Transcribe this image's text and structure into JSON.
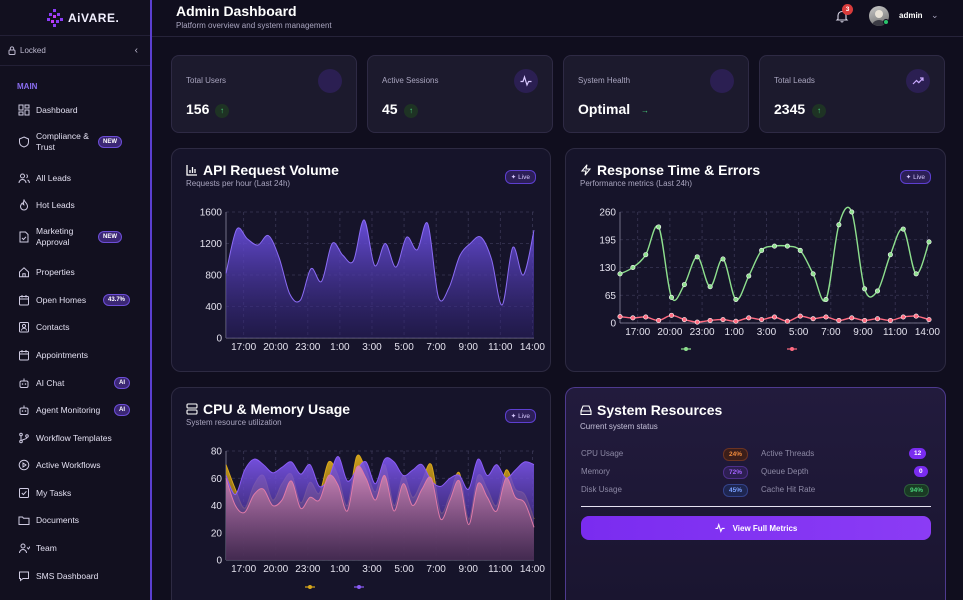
{
  "brand": {
    "name": "AiVARE."
  },
  "sidebar": {
    "lock_label": "Locked",
    "section": "MAIN",
    "items": [
      {
        "label": "Dashboard",
        "icon": "dashboard-icon"
      },
      {
        "label": "Compliance & Trust",
        "icon": "shield-icon",
        "badge": "NEW"
      },
      {
        "label": "All Leads",
        "icon": "users-icon"
      },
      {
        "label": "Hot Leads",
        "icon": "flame-icon"
      },
      {
        "label": "Marketing Approval",
        "icon": "document-check-icon",
        "badge": "NEW"
      },
      {
        "label": "Properties",
        "icon": "home-icon"
      },
      {
        "label": "Open Homes",
        "icon": "calendar-icon",
        "badge": "43.7%"
      },
      {
        "label": "Contacts",
        "icon": "contact-card-icon"
      },
      {
        "label": "Appointments",
        "icon": "calendar-icon"
      },
      {
        "label": "AI Chat",
        "icon": "bot-icon",
        "badge": "AI"
      },
      {
        "label": "Agent Monitoring",
        "icon": "bot-icon",
        "badge": "AI"
      },
      {
        "label": "Workflow Templates",
        "icon": "git-branch-icon"
      },
      {
        "label": "Active Workflows",
        "icon": "play-circle-icon"
      },
      {
        "label": "My Tasks",
        "icon": "checkbox-icon"
      },
      {
        "label": "Documents",
        "icon": "folder-icon"
      },
      {
        "label": "Team",
        "icon": "team-icon"
      },
      {
        "label": "SMS Dashboard",
        "icon": "message-icon"
      }
    ]
  },
  "header": {
    "title": "Admin Dashboard",
    "subtitle": "Platform overview and system management",
    "notifications": "3",
    "user": "admin"
  },
  "stats": [
    {
      "label": "Total Users",
      "value": "156",
      "trend": "↑"
    },
    {
      "label": "Active Sessions",
      "value": "45",
      "trend": "↑"
    },
    {
      "label": "System Health",
      "value": "Optimal",
      "trend": "→"
    },
    {
      "label": "Total Leads",
      "value": "2345",
      "trend": "↑"
    }
  ],
  "panels": {
    "api": {
      "title": "API Request Volume",
      "subtitle": "Requests per hour (Last 24h)",
      "badge": "Live"
    },
    "response": {
      "title": "Response Time & Errors",
      "subtitle": "Performance metrics (Last 24h)",
      "badge": "Live"
    },
    "cpu": {
      "title": "CPU & Memory Usage",
      "subtitle": "System resource utilization",
      "badge": "Live"
    }
  },
  "system_resources": {
    "title": "System Resources",
    "subtitle": "Current system status",
    "left": [
      {
        "label": "CPU Usage",
        "value": "24%",
        "color": "#f08a3c"
      },
      {
        "label": "Memory",
        "value": "72%",
        "color": "#a463ff"
      },
      {
        "label": "Disk Usage",
        "value": "45%",
        "color": "#5b8cff"
      }
    ],
    "right": [
      {
        "label": "Active Threads",
        "value": "12",
        "color": "#8b3cf5"
      },
      {
        "label": "Queue Depth",
        "value": "0",
        "color": "#8b3cf5"
      },
      {
        "label": "Cache Hit Rate",
        "value": "94%",
        "color": "#3ecf6e"
      }
    ],
    "button": "View Full Metrics"
  },
  "chart_data": [
    {
      "type": "area",
      "title": "API Request Volume",
      "x_ticks": [
        "17:00",
        "20:00",
        "23:00",
        "1:00",
        "3:00",
        "5:00",
        "7:00",
        "9:00",
        "11:00",
        "14:00"
      ],
      "ylim": [
        0,
        1600
      ],
      "y_ticks": [
        "0",
        "400",
        "800",
        "1200",
        "1600"
      ],
      "grid": true,
      "series": [
        {
          "values": [
            820,
            1380,
            1260,
            1180,
            1300,
            1020,
            560,
            480,
            880,
            720,
            1200,
            1050,
            980,
            1500,
            920,
            1200,
            900,
            1280,
            1120,
            1450,
            520,
            640,
            1040,
            1200,
            1280,
            1000,
            420,
            1150,
            800,
            1370
          ]
        }
      ]
    },
    {
      "type": "line",
      "title": "Response Time & Errors",
      "x_ticks": [
        "17:00",
        "20:00",
        "23:00",
        "1:00",
        "3:00",
        "5:00",
        "7:00",
        "9:00",
        "11:00",
        "14:00"
      ],
      "ylim": [
        0,
        260
      ],
      "y_ticks": [
        "0",
        "65",
        "130",
        "195",
        "260"
      ],
      "grid": true,
      "legend": "bottom",
      "series": [
        {
          "color": "#8ee08e",
          "values": [
            115,
            130,
            160,
            225,
            60,
            90,
            155,
            85,
            150,
            55,
            110,
            170,
            180,
            180,
            170,
            115,
            55,
            230,
            260,
            80,
            75,
            160,
            220,
            115,
            190
          ]
        },
        {
          "color": "#ff6b81",
          "values": [
            15,
            12,
            14,
            6,
            18,
            8,
            2,
            6,
            8,
            4,
            12,
            8,
            14,
            4,
            16,
            10,
            14,
            6,
            12,
            6,
            10,
            6,
            14,
            16,
            8
          ]
        }
      ]
    },
    {
      "type": "area",
      "title": "CPU & Memory Usage",
      "x_ticks": [
        "17:00",
        "20:00",
        "23:00",
        "1:00",
        "3:00",
        "5:00",
        "7:00",
        "9:00",
        "11:00",
        "14:00"
      ],
      "ylim": [
        0,
        80
      ],
      "y_ticks": [
        "0",
        "20",
        "40",
        "60",
        "80"
      ],
      "grid": true,
      "legend": "bottom",
      "series": [
        {
          "color": "#d9a81b",
          "values": [
            70,
            52,
            38,
            55,
            62,
            44,
            56,
            63,
            42,
            57,
            49,
            72,
            62,
            40,
            76,
            66,
            50,
            70,
            40,
            62,
            46,
            58,
            70,
            35,
            48,
            64,
            30,
            62,
            52,
            40,
            66,
            52,
            48,
            30
          ]
        },
        {
          "color": "#8a5cf6",
          "values": [
            62,
            48,
            66,
            74,
            70,
            64,
            68,
            72,
            63,
            70,
            54,
            60,
            76,
            58,
            66,
            72,
            56,
            74,
            72,
            62,
            66,
            70,
            58,
            54,
            60,
            62,
            52,
            74,
            62,
            70,
            60,
            66,
            72,
            70
          ]
        },
        {
          "color": "#e07aa8",
          "values": [
            60,
            40,
            35,
            48,
            52,
            40,
            44,
            58,
            38,
            46,
            44,
            62,
            55,
            36,
            68,
            60,
            44,
            62,
            36,
            56,
            40,
            52,
            60,
            30,
            44,
            58,
            26,
            56,
            46,
            36,
            60,
            46,
            42,
            24
          ]
        }
      ]
    }
  ]
}
